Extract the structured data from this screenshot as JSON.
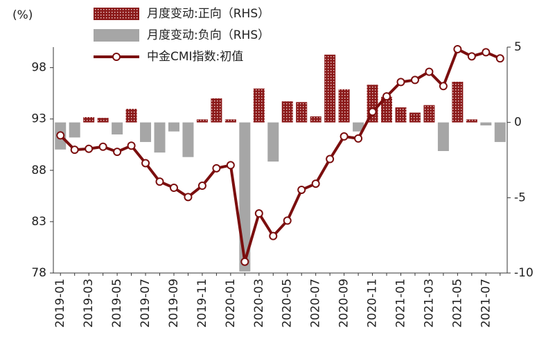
{
  "chart_data": {
    "type": "combo",
    "y_label": "(%)",
    "categories": [
      "2019-01",
      null,
      "2019-03",
      null,
      "2019-05",
      null,
      "2019-07",
      null,
      "2019-09",
      null,
      "2019-11",
      null,
      "2020-01",
      null,
      "2020-03",
      null,
      "2020-05",
      null,
      "2020-07",
      null,
      "2020-09",
      null,
      "2020-11",
      null,
      "2021-01",
      null,
      "2021-03",
      null,
      "2021-05",
      null,
      "2021-07",
      null
    ],
    "series": [
      {
        "name": "月度变动:正向（RHS）",
        "type": "bar",
        "axis": "y2",
        "color": "#8b1a1a",
        "values": [
          null,
          null,
          0.35,
          0.3,
          null,
          0.9,
          null,
          null,
          null,
          null,
          0.2,
          1.6,
          0.2,
          null,
          2.25,
          null,
          1.4,
          1.35,
          0.4,
          4.5,
          2.2,
          null,
          2.5,
          1.7,
          1.0,
          0.65,
          1.15,
          null,
          2.7,
          0.2,
          null,
          null
        ]
      },
      {
        "name": "月度变动:负向（RHS）",
        "type": "bar",
        "axis": "y2",
        "color": "#a6a6a6",
        "values": [
          -1.8,
          -1.0,
          null,
          null,
          -0.8,
          null,
          -1.3,
          -2.0,
          -0.6,
          -2.3,
          null,
          null,
          null,
          -9.9,
          null,
          -2.6,
          null,
          null,
          null,
          null,
          null,
          -0.6,
          null,
          null,
          null,
          null,
          null,
          -1.9,
          null,
          null,
          -0.2,
          -1.3
        ]
      },
      {
        "name": "中金CMI指数:初值",
        "type": "line",
        "color": "#7b0e0e",
        "values": [
          91.4,
          90.0,
          90.1,
          90.3,
          89.8,
          90.4,
          88.7,
          86.9,
          86.3,
          85.4,
          86.5,
          88.2,
          88.5,
          79.1,
          83.8,
          81.6,
          83.1,
          86.1,
          86.7,
          89.1,
          91.3,
          91.1,
          93.7,
          95.2,
          96.6,
          96.8,
          97.6,
          96.2,
          99.8,
          99.1,
          99.5,
          98.9
        ]
      }
    ],
    "ylim": [
      78,
      100
    ],
    "yticks": [
      78,
      83,
      88,
      93,
      98
    ],
    "y2lim": [
      -10,
      5
    ],
    "y2ticks": [
      -10,
      -5,
      0,
      5
    ]
  }
}
